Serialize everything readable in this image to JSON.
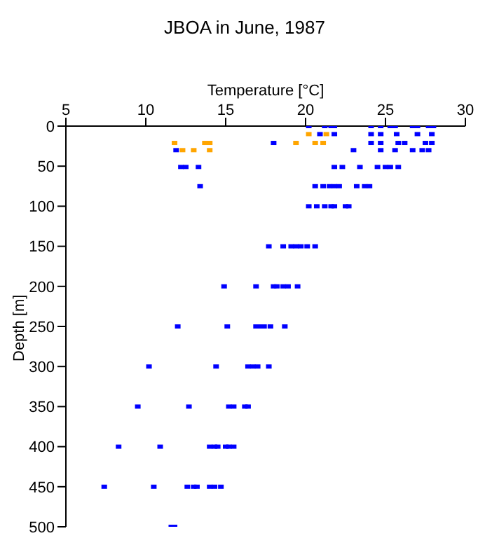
{
  "chart_data": {
    "type": "scatter",
    "title": "JBOA in June, 1987",
    "xlabel": "Temperature [°C]",
    "ylabel": "Depth [m]",
    "xlim": [
      5,
      30
    ],
    "xticks": [
      5,
      10,
      15,
      20,
      25,
      30
    ],
    "ylim": [
      500,
      0
    ],
    "yticks": [
      0,
      50,
      100,
      150,
      200,
      250,
      300,
      350,
      400,
      450,
      500
    ],
    "grid": false,
    "legend": false,
    "marker": "square",
    "series": [
      {
        "color": "#ffa500",
        "x": [
          20.2,
          21.3,
          11.8,
          13.7,
          14.0,
          19.4,
          20.6,
          21.1,
          12.3,
          13.0,
          14.0
        ],
        "values": [
          10,
          10,
          21,
          21,
          21,
          21,
          21,
          21,
          30,
          30,
          30
        ]
      },
      {
        "color": "#0000ff",
        "x": [
          20.2,
          21.2,
          21.6,
          21.8,
          24.1,
          24.7,
          25.3,
          25.6,
          26.7,
          27.0,
          27.7,
          28.0,
          20.9,
          21.8,
          24.1,
          24.7,
          25.7,
          27.0,
          27.9,
          18.0,
          24.1,
          24.7,
          25.8,
          26.2,
          27.5,
          27.9,
          11.9,
          23.0,
          24.7,
          25.6,
          26.7,
          27.3,
          27.7,
          12.2,
          12.5,
          13.3,
          21.8,
          22.3,
          23.4,
          24.5,
          25.0,
          25.3,
          25.8,
          13.4,
          20.6,
          21.1,
          21.5,
          21.8,
          22.1,
          23.2,
          23.7,
          24.0,
          20.2,
          20.7,
          21.2,
          21.6,
          21.8,
          22.5,
          22.7,
          17.7,
          18.6,
          19.1,
          19.4,
          19.7,
          20.1,
          20.6,
          14.9,
          16.9,
          18.0,
          18.2,
          18.6,
          18.9,
          19.5,
          12.0,
          15.1,
          16.9,
          17.2,
          17.4,
          17.8,
          18.7,
          10.2,
          14.4,
          16.4,
          16.7,
          17.0,
          17.7,
          9.5,
          12.7,
          15.2,
          15.5,
          16.2,
          16.4,
          8.3,
          10.9,
          14.0,
          14.3,
          14.5,
          15.0,
          15.2,
          15.5,
          7.4,
          10.5,
          12.6,
          13.0,
          13.2,
          14.0,
          14.3,
          14.7,
          11.6,
          11.8
        ],
        "values": [
          0,
          0,
          0,
          0,
          0,
          0,
          0,
          0,
          0,
          0,
          0,
          0,
          10,
          10,
          10,
          10,
          10,
          10,
          10,
          21,
          21,
          21,
          21,
          21,
          21,
          21,
          30,
          30,
          30,
          30,
          30,
          30,
          30,
          51,
          51,
          51,
          51,
          51,
          51,
          51,
          51,
          51,
          51,
          75,
          75,
          75,
          75,
          75,
          75,
          75,
          75,
          75,
          100,
          100,
          100,
          100,
          100,
          100,
          100,
          150,
          150,
          150,
          150,
          150,
          150,
          150,
          200,
          200,
          200,
          200,
          200,
          200,
          200,
          250,
          250,
          250,
          250,
          250,
          250,
          250,
          300,
          300,
          300,
          300,
          300,
          300,
          350,
          350,
          350,
          350,
          350,
          350,
          400,
          400,
          400,
          400,
          400,
          400,
          400,
          400,
          450,
          450,
          450,
          450,
          450,
          450,
          450,
          450,
          500,
          500
        ]
      }
    ]
  }
}
